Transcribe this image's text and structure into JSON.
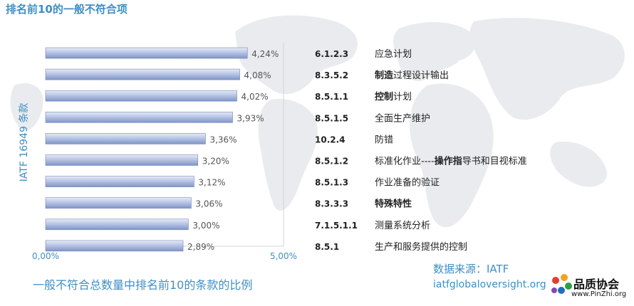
{
  "title": "排名前10的一般不符合项",
  "ylabel": "IATF 16949 条款",
  "caption": "一般不符合总数量中排名前10的条款的比例",
  "source": {
    "label": "数据来源：IATF",
    "url": "iatfglobaloversight.org"
  },
  "logo": {
    "name": "品质协会",
    "url": "www.PinZhi.org"
  },
  "colors": {
    "accent": "#3f8fc4",
    "bar_light": "#e6ebf7",
    "bar_dark": "#7f95c7"
  },
  "chart_data": {
    "type": "bar",
    "orientation": "horizontal",
    "title": "排名前10的一般不符合项",
    "xlabel": "一般不符合总数量中排名前10的条款的比例",
    "ylabel": "IATF 16949 条款",
    "xlim": [
      0,
      5
    ],
    "xticks": [
      "0,00%",
      "5,00%"
    ],
    "values": [
      4.24,
      4.08,
      4.02,
      3.93,
      3.36,
      3.2,
      3.12,
      3.06,
      3.0,
      2.89
    ],
    "value_labels": [
      "4,24%",
      "4,08%",
      "4,02%",
      "3,93%",
      "3,36%",
      "3,20%",
      "3,12%",
      "3,06%",
      "3,00%",
      "2,89%"
    ],
    "clauses": [
      "6.1.2.3",
      "8.3.5.2",
      "8.5.1.1",
      "8.5.1.5",
      "10.2.4",
      "8.5.1.2",
      "8.5.1.3",
      "8.3.3.3",
      "7.1.5.1.1",
      "8.5.1"
    ],
    "clause_names": [
      [
        {
          "text": "应急计划",
          "bold": false
        }
      ],
      [
        {
          "text": "制造",
          "bold": true
        },
        {
          "text": "过程设计输出",
          "bold": false
        }
      ],
      [
        {
          "text": "控制",
          "bold": true
        },
        {
          "text": "计划",
          "bold": false
        }
      ],
      [
        {
          "text": "全面生产维护",
          "bold": false
        }
      ],
      [
        {
          "text": "防错",
          "bold": false
        }
      ],
      [
        {
          "text": "标准化作业----",
          "bold": false
        },
        {
          "text": "操作指",
          "bold": true
        },
        {
          "text": "导书和目视标准",
          "bold": false
        }
      ],
      [
        {
          "text": "作业准备的验证",
          "bold": false
        }
      ],
      [
        {
          "text": "特殊特性",
          "bold": true
        }
      ],
      [
        {
          "text": "测量系统分析",
          "bold": false
        }
      ],
      [
        {
          "text": "生产和服务提供的控制",
          "bold": false
        }
      ]
    ],
    "grid": false,
    "legend": "none"
  }
}
